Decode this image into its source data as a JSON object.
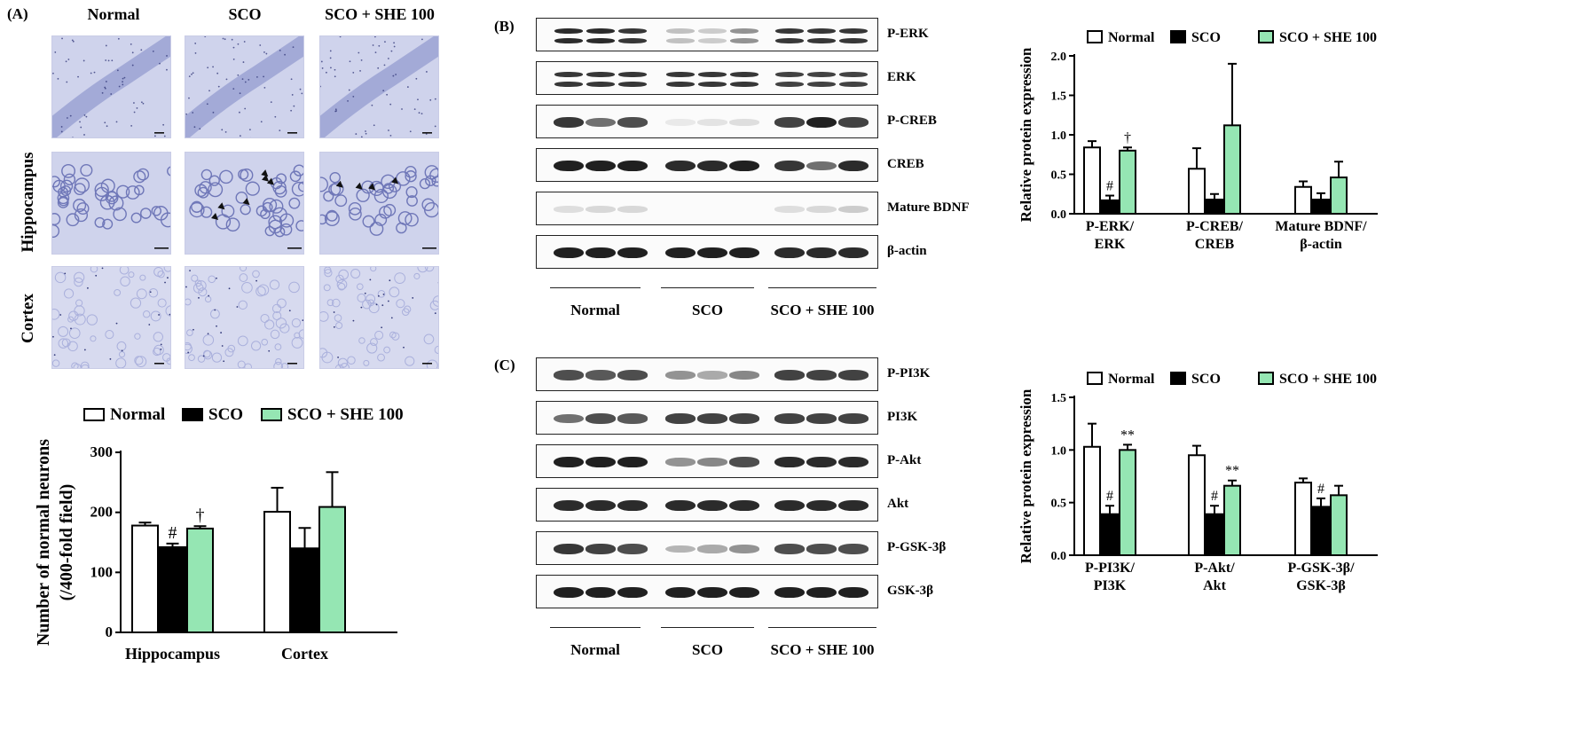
{
  "panelA": {
    "label": "(A)",
    "column_titles": [
      "Normal",
      "SCO",
      "SCO + SHE 100"
    ],
    "row_labels": [
      "Hippocampus",
      "Cortex"
    ]
  },
  "panelB": {
    "label": "(B)",
    "blot_labels": [
      "P-ERK",
      "ERK",
      "P-CREB",
      "CREB",
      "Mature BDNF",
      "β-actin"
    ],
    "group_labels": [
      "Normal",
      "SCO",
      "SCO + SHE 100"
    ]
  },
  "panelC": {
    "label": "(C)",
    "blot_labels": [
      "P-PI3K",
      "PI3K",
      "P-Akt",
      "Akt",
      "P-GSK-3β",
      "GSK-3β"
    ],
    "group_labels": [
      "Normal",
      "SCO",
      "SCO + SHE 100"
    ]
  },
  "colors": {
    "normal": "#ffffff",
    "sco": "#000000",
    "she": "#95e6b3",
    "stain": "#8f96cf"
  },
  "chart_data": [
    {
      "id": "A-neurons",
      "type": "bar",
      "categories": [
        "Hippocampus",
        "Cortex"
      ],
      "series": [
        {
          "name": "Normal",
          "values": [
            178,
            201
          ],
          "errors": [
            5,
            40
          ]
        },
        {
          "name": "SCO",
          "values": [
            142,
            140
          ],
          "errors": [
            6,
            34
          ]
        },
        {
          "name": "SCO + SHE 100",
          "values": [
            173,
            209
          ],
          "errors": [
            4,
            58
          ]
        }
      ],
      "annotations": [
        {
          "category": "Hippocampus",
          "series": "SCO",
          "text": "#"
        },
        {
          "category": "Hippocampus",
          "series": "SCO + SHE 100",
          "text": "†"
        }
      ],
      "ylabel": [
        "Number of normal neurons",
        "(/400-fold field)"
      ],
      "ylim": [
        0,
        300
      ],
      "yticks": [
        0,
        100,
        200,
        300
      ],
      "legend_position": "top"
    },
    {
      "id": "B-protein",
      "type": "bar",
      "categories": [
        [
          "P-ERK/",
          "ERK"
        ],
        [
          "P-CREB/",
          "CREB"
        ],
        [
          "Mature BDNF/",
          "β-actin"
        ]
      ],
      "series": [
        {
          "name": "Normal",
          "values": [
            0.84,
            0.57,
            0.34
          ],
          "errors": [
            0.08,
            0.26,
            0.07
          ]
        },
        {
          "name": "SCO",
          "values": [
            0.17,
            0.18,
            0.18
          ],
          "errors": [
            0.06,
            0.07,
            0.08
          ]
        },
        {
          "name": "SCO + SHE 100",
          "values": [
            0.8,
            1.12,
            0.46
          ],
          "errors": [
            0.04,
            0.78,
            0.2
          ]
        }
      ],
      "annotations": [
        {
          "category": 0,
          "series": "SCO",
          "text": "#"
        },
        {
          "category": 0,
          "series": "SCO + SHE 100",
          "text": "†"
        }
      ],
      "ylabel": [
        "Relative protein expression"
      ],
      "ylim": [
        0,
        2.0
      ],
      "yticks": [
        0.0,
        0.5,
        1.0,
        1.5,
        2.0
      ],
      "ytick_labels": [
        "0.0",
        "0.5",
        "1.0",
        "1.5",
        "2.0"
      ],
      "legend_position": "top"
    },
    {
      "id": "C-protein",
      "type": "bar",
      "categories": [
        [
          "P-PI3K/",
          "PI3K"
        ],
        [
          "P-Akt/",
          "Akt"
        ],
        [
          "P-GSK-3β/",
          "GSK-3β"
        ]
      ],
      "series": [
        {
          "name": "Normal",
          "values": [
            1.03,
            0.95,
            0.69
          ],
          "errors": [
            0.22,
            0.09,
            0.04
          ]
        },
        {
          "name": "SCO",
          "values": [
            0.39,
            0.39,
            0.46
          ],
          "errors": [
            0.08,
            0.08,
            0.08
          ]
        },
        {
          "name": "SCO + SHE 100",
          "values": [
            1.0,
            0.66,
            0.57
          ],
          "errors": [
            0.05,
            0.05,
            0.09
          ]
        }
      ],
      "annotations": [
        {
          "category": 0,
          "series": "SCO",
          "text": "#"
        },
        {
          "category": 0,
          "series": "SCO + SHE 100",
          "text": "**"
        },
        {
          "category": 1,
          "series": "SCO",
          "text": "#"
        },
        {
          "category": 1,
          "series": "SCO + SHE 100",
          "text": "**"
        },
        {
          "category": 2,
          "series": "SCO",
          "text": "#"
        }
      ],
      "ylabel": [
        "Relative protein expression"
      ],
      "ylim": [
        0,
        1.5
      ],
      "yticks": [
        0.0,
        0.5,
        1.0,
        1.5
      ],
      "ytick_labels": [
        "0.0",
        "0.5",
        "1.0",
        "1.5"
      ],
      "legend_position": "top"
    }
  ]
}
